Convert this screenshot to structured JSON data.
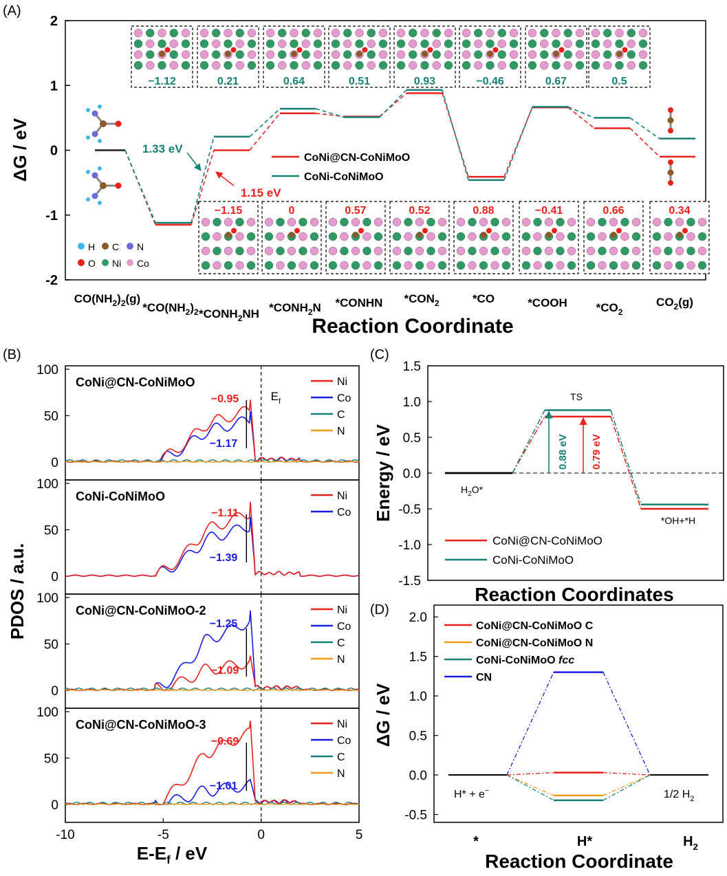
{
  "colors": {
    "red": "#e8211d",
    "teal": "#168075",
    "blue": "#1a1ae6",
    "orange": "#f39a1c",
    "pink": "#e79ad0",
    "green": "#2f9a63"
  },
  "chart_data": [
    {
      "panel": "(A)",
      "type": "line",
      "ylabel": "ΔG / eV",
      "xlabel": "Reaction Coordinate",
      "ylim": [
        -2,
        2
      ],
      "yticks": [
        "-2",
        "-1",
        "0",
        "1",
        "2"
      ],
      "categories": [
        "CO(NH2)2(g)",
        "*CO(NH2)2",
        "*CONH2NH",
        "*CONH2N",
        "*CONHN",
        "*CON2",
        "*CO",
        "*COOH",
        "*CO2",
        "CO2(g)"
      ],
      "category_labels": [
        {
          "main": "CO(NH",
          "sub": "2",
          "mid": ")",
          "sub2": "2",
          "tail": "(g)"
        },
        {
          "main": "*CO(NH",
          "sub": "2",
          "mid": ")",
          "sub2": "2",
          "tail": ""
        },
        {
          "main": "*CONH",
          "sub": "2",
          "mid": "NH",
          "sub2": "",
          "tail": ""
        },
        {
          "main": "*CONH",
          "sub": "2",
          "mid": "N",
          "sub2": "",
          "tail": ""
        },
        {
          "main": "*CONHN",
          "sub": "",
          "mid": "",
          "sub2": "",
          "tail": ""
        },
        {
          "main": "*CON",
          "sub": "2",
          "mid": "",
          "sub2": "",
          "tail": ""
        },
        {
          "main": "*CO",
          "sub": "",
          "mid": "",
          "sub2": "",
          "tail": ""
        },
        {
          "main": "*COOH",
          "sub": "",
          "mid": "",
          "sub2": "",
          "tail": ""
        },
        {
          "main": "*CO",
          "sub": "2",
          "mid": "",
          "sub2": "",
          "tail": ""
        },
        {
          "main": "CO",
          "sub": "2",
          "mid": "(g)",
          "sub2": "",
          "tail": ""
        }
      ],
      "series": [
        {
          "name": "CoNi@CN-CoNiMoO",
          "color": "red",
          "values": [
            0,
            -1.15,
            0,
            0.57,
            0.52,
            0.88,
            -0.41,
            0.66,
            0.34,
            -0.1
          ]
        },
        {
          "name": "CoNi-CoNiMoO",
          "color": "teal",
          "values": [
            0,
            -1.12,
            0.21,
            0.64,
            0.51,
            0.93,
            -0.46,
            0.67,
            0.5,
            0.18
          ]
        }
      ],
      "annotations": [
        "1.33 eV",
        "1.15 eV"
      ],
      "inset_values_teal": [
        "−1.12",
        "0.21",
        "0.64",
        "0.51",
        "0.93",
        "−0.46",
        "0.67",
        "0.5"
      ],
      "inset_values_red": [
        "−1.15",
        "0",
        "0.57",
        "0.52",
        "0.88",
        "−0.41",
        "0.66",
        "0.34"
      ],
      "atom_legend": [
        "H",
        "C",
        "N",
        "O",
        "Ni",
        "Co"
      ]
    },
    {
      "panel": "(B)",
      "type": "line",
      "xlabel": "E-E",
      "xlabel_sub": "f",
      "xlabel_tail": " / eV",
      "ylabel": "PDOS / a.u.",
      "xlim": [
        -10,
        5
      ],
      "xticks": [
        "-10",
        "-5",
        "0",
        "5"
      ],
      "yticks": [
        "0",
        "50",
        "100"
      ],
      "fermi_label": "E",
      "fermi_sub": "f",
      "subplots": [
        {
          "title": "CoNi@CN-CoNiMoO",
          "legend": [
            "Ni",
            "Co",
            "C",
            "N"
          ],
          "d_center_red": "−0.95",
          "d_center_blue": "−1.17",
          "peak_ni": 62,
          "peak_co": 50
        },
        {
          "title": "CoNi-CoNiMoO",
          "legend": [
            "Ni",
            "Co"
          ],
          "d_center_red": "−1.11",
          "d_center_blue": "−1.39",
          "peak_ni": 76,
          "peak_co": 60
        },
        {
          "title": "CoNi@CN-CoNiMoO-2",
          "legend": [
            "Ni",
            "Co",
            "C",
            "N"
          ],
          "d_center_red": "−1.09",
          "d_center_blue": "−1.25",
          "peak_ni": 33,
          "peak_co": 82
        },
        {
          "title": "CoNi@CN-CoNiMoO-3",
          "legend": [
            "Ni",
            "Co",
            "C",
            "N"
          ],
          "d_center_red": "−0.69",
          "d_center_blue": "−1.01",
          "peak_ni": 85,
          "peak_co": 22
        }
      ]
    },
    {
      "panel": "(C)",
      "type": "line",
      "ylabel": "Energy / eV",
      "xlabel": "Reaction Coordinates",
      "ylim": [
        -1.5,
        1.5
      ],
      "yticks": [
        "-1.5",
        "-1.0",
        "-0.5",
        "0.0",
        "0.5",
        "1.0",
        "1.5"
      ],
      "states": [
        "H2O*",
        "TS",
        "*OH+*H"
      ],
      "state_labels": {
        "h2o": "H",
        "h2o_sub": "2",
        "h2o_tail": "O*",
        "ts": "TS",
        "final": "*OH+*H"
      },
      "series": [
        {
          "name": "CoNi@CN-CoNiMoO",
          "color": "red",
          "values": [
            0,
            0.79,
            -0.5
          ]
        },
        {
          "name": "CoNi-CoNiMoO",
          "color": "teal",
          "values": [
            0,
            0.88,
            -0.44
          ]
        }
      ],
      "annotations": [
        "0.88 eV",
        "0.79 eV"
      ]
    },
    {
      "panel": "(D)",
      "type": "line",
      "ylabel": "ΔG  / eV",
      "xlabel": "Reaction Coordinate",
      "ylim": [
        -0.5,
        2.0
      ],
      "yticks": [
        "-0.5",
        "0.0",
        "0.5",
        "1.0",
        "1.5",
        "2.0"
      ],
      "categories": [
        "*",
        "H*",
        "H2"
      ],
      "category_labels": [
        {
          "main": "*",
          "sub": ""
        },
        {
          "main": "H*",
          "sub": ""
        },
        {
          "main": "H",
          "sub": "2"
        }
      ],
      "state_labels": {
        "left": "H* + e",
        "left_sup": "−",
        "right": "1/2 H",
        "right_sub": "2"
      },
      "series": [
        {
          "name": "CoNi@CN-CoNiMoO C",
          "color": "red",
          "values": [
            0,
            0.03,
            0
          ]
        },
        {
          "name": "CoNi@CN-CoNiMoO N",
          "color": "orange",
          "values": [
            0,
            -0.26,
            0
          ]
        },
        {
          "name": "CoNi-CoNiMoO fcc",
          "color": "teal",
          "values": [
            0,
            -0.32,
            0
          ]
        },
        {
          "name": "CN",
          "color": "blue",
          "values": [
            0,
            1.3,
            0
          ]
        }
      ]
    }
  ],
  "panel_labels": [
    "(A)",
    "(B)",
    "(C)",
    "(D)"
  ]
}
